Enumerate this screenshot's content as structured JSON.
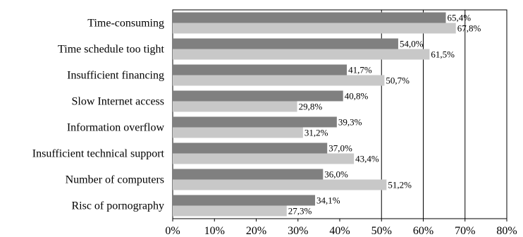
{
  "chart_data": {
    "type": "bar",
    "orientation": "horizontal",
    "categories": [
      "Time-consuming",
      "Time schedule too tight",
      "Insufficient financing",
      "Slow Internet access",
      "Information overflow",
      "Insufficient technical support",
      "Number of computers",
      "Risc of pornography"
    ],
    "series": [
      {
        "values": [
          65.4,
          54.0,
          41.7,
          40.8,
          39.3,
          37.0,
          36.0,
          34.1
        ],
        "labels": [
          "65,4%",
          "54,0%",
          "41,7%",
          "40,8%",
          "39,3%",
          "37,0%",
          "36,0%",
          "34,1%"
        ],
        "color": "#808080"
      },
      {
        "values": [
          67.8,
          61.5,
          50.7,
          29.8,
          31.2,
          43.4,
          51.2,
          27.3
        ],
        "labels": [
          "67,8%",
          "61,5%",
          "50,7%",
          "29,8%",
          "31,2%",
          "43,4%",
          "51,2%",
          "27,3%"
        ],
        "color": "#c8c8c8"
      }
    ],
    "xlim": [
      0,
      80
    ],
    "xticks": [
      "0%",
      "10%",
      "20%",
      "30%",
      "40%",
      "50%",
      "60%",
      "70%",
      "80%"
    ],
    "gridlines_x": true,
    "legend": "none"
  }
}
